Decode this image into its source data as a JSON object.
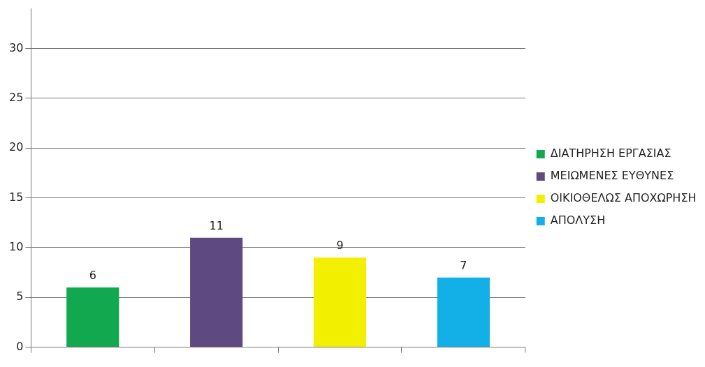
{
  "chart_data": {
    "type": "bar",
    "categories": [
      null,
      null,
      null,
      null
    ],
    "series": [
      {
        "name": "ΔΙΑΤΗΡΗΣΗ ΕΡΓΑΣΙΑΣ",
        "color": "#11a84f",
        "values": [
          6,
          null,
          null,
          null
        ]
      },
      {
        "name": "ΜΕΙΩΜΕΝΕΣ ΕΥΘΥΝΕΣ",
        "color": "#5e4a80",
        "values": [
          null,
          11,
          null,
          null
        ]
      },
      {
        "name": "ΟΙΚΙΟΘΕΛΩΣ ΑΠΟΧΩΡΗΣΗ",
        "color": "#f2f000",
        "values": [
          null,
          null,
          9,
          null
        ]
      },
      {
        "name": "ΑΠΟΛΥΣΗ",
        "color": "#12b0e6",
        "values": [
          null,
          null,
          null,
          7
        ]
      }
    ],
    "ylim": [
      0,
      34
    ],
    "yticks": [
      0,
      5,
      10,
      15,
      20,
      25,
      30
    ],
    "grid": "y",
    "legend": "right",
    "data_labels": true
  }
}
